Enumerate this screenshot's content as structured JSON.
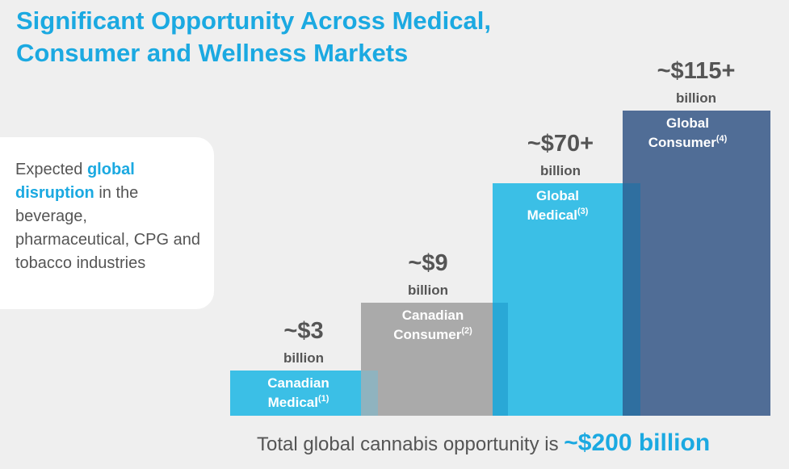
{
  "title": {
    "line1": "Significant Opportunity Across Medical,",
    "line2": "Consumer and Wellness Markets"
  },
  "callout": {
    "prefix": "Expected ",
    "highlight": "global disruption",
    "suffix": " in the beverage, pharmaceutical, CPG and tobacco industries"
  },
  "total": {
    "text": "Total global cannabis opportunity is ",
    "amount": "~$200 billion"
  },
  "chart_data": {
    "type": "bar",
    "categories": [
      "Canadian Medical",
      "Canadian Consumer",
      "Global Medical",
      "Global Consumer"
    ],
    "values": [
      3,
      9,
      70,
      115
    ],
    "footnotes": [
      "(1)",
      "(2)",
      "(3)",
      "(4)"
    ],
    "value_labels": [
      "~$3",
      "~$9",
      "~$70+",
      "~$115+"
    ],
    "unit_label": "billion",
    "colors": [
      "#3bbfe6",
      "#aaaaaa",
      "#3bbfe6",
      "#506d96"
    ],
    "overlap_colors": [
      "#8fb3bf",
      "#29a8d6",
      "#2f6fa0"
    ]
  }
}
